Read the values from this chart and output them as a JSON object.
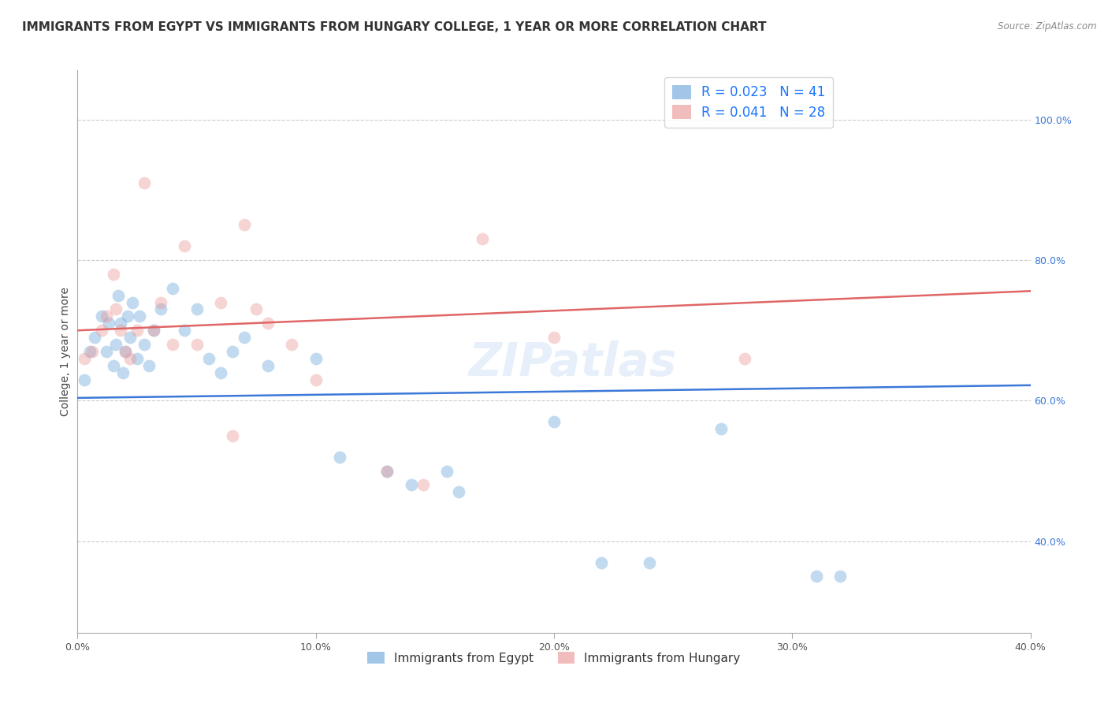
{
  "title": "IMMIGRANTS FROM EGYPT VS IMMIGRANTS FROM HUNGARY COLLEGE, 1 YEAR OR MORE CORRELATION CHART",
  "source": "Source: ZipAtlas.com",
  "ylabel": "College, 1 year or more",
  "legend_label1": "Immigrants from Egypt",
  "legend_label2": "Immigrants from Hungary",
  "R1": 0.023,
  "N1": 41,
  "R2": 0.041,
  "N2": 28,
  "color1": "#6fa8dc",
  "color2": "#ea9999",
  "trendline1_color": "#3c78d8",
  "trendline2_color": "#e06666",
  "xlim": [
    0.0,
    0.4
  ],
  "ylim": [
    0.27,
    1.07
  ],
  "xtick_labels": [
    "0.0%",
    "10.0%",
    "20.0%",
    "30.0%",
    "40.0%"
  ],
  "xtick_values": [
    0.0,
    0.1,
    0.2,
    0.3,
    0.4
  ],
  "ytick_right_labels": [
    "40.0%",
    "60.0%",
    "80.0%",
    "100.0%"
  ],
  "ytick_right_values": [
    0.4,
    0.6,
    0.8,
    1.0
  ],
  "grid_color": "#cccccc",
  "background_color": "#ffffff",
  "watermark": "ZIPatlas",
  "blue_x": [
    0.003,
    0.005,
    0.007,
    0.01,
    0.012,
    0.013,
    0.015,
    0.016,
    0.017,
    0.018,
    0.019,
    0.02,
    0.021,
    0.022,
    0.023,
    0.025,
    0.026,
    0.028,
    0.03,
    0.032,
    0.035,
    0.04,
    0.045,
    0.05,
    0.055,
    0.06,
    0.065,
    0.07,
    0.08,
    0.1,
    0.11,
    0.13,
    0.14,
    0.155,
    0.16,
    0.2,
    0.22,
    0.24,
    0.27,
    0.31,
    0.32
  ],
  "blue_y": [
    0.63,
    0.67,
    0.69,
    0.72,
    0.67,
    0.71,
    0.65,
    0.68,
    0.75,
    0.71,
    0.64,
    0.67,
    0.72,
    0.69,
    0.74,
    0.66,
    0.72,
    0.68,
    0.65,
    0.7,
    0.73,
    0.76,
    0.7,
    0.73,
    0.66,
    0.64,
    0.67,
    0.69,
    0.65,
    0.66,
    0.52,
    0.5,
    0.48,
    0.5,
    0.47,
    0.57,
    0.37,
    0.37,
    0.56,
    0.35,
    0.35
  ],
  "pink_x": [
    0.003,
    0.006,
    0.01,
    0.012,
    0.015,
    0.016,
    0.018,
    0.02,
    0.022,
    0.025,
    0.028,
    0.032,
    0.035,
    0.04,
    0.045,
    0.05,
    0.06,
    0.065,
    0.07,
    0.075,
    0.08,
    0.09,
    0.1,
    0.13,
    0.145,
    0.17,
    0.2,
    0.28
  ],
  "pink_y": [
    0.66,
    0.67,
    0.7,
    0.72,
    0.78,
    0.73,
    0.7,
    0.67,
    0.66,
    0.7,
    0.91,
    0.7,
    0.74,
    0.68,
    0.82,
    0.68,
    0.74,
    0.55,
    0.85,
    0.73,
    0.71,
    0.68,
    0.63,
    0.5,
    0.48,
    0.83,
    0.69,
    0.66
  ],
  "trendline1_x": [
    0.0,
    0.4
  ],
  "trendline1_y": [
    0.604,
    0.622
  ],
  "trendline2_x": [
    0.0,
    0.4
  ],
  "trendline2_y": [
    0.7,
    0.756
  ],
  "marker_size": 130,
  "marker_alpha": 0.42,
  "title_fontsize": 11,
  "axis_fontsize": 10,
  "tick_fontsize": 9,
  "legend_fontsize": 12
}
